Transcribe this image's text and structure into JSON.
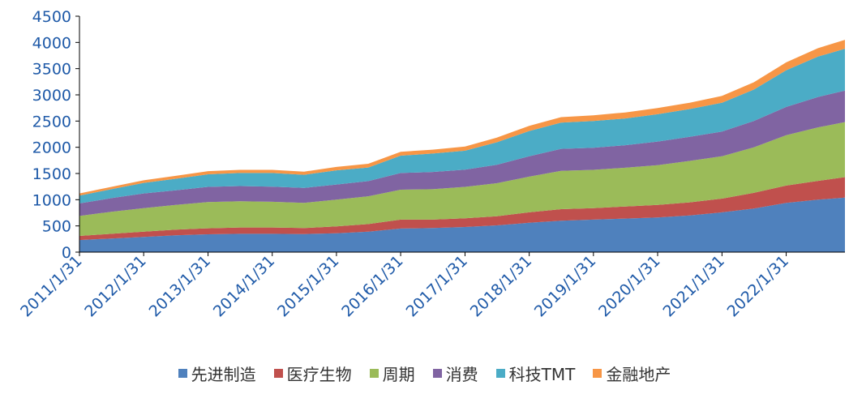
{
  "chart_data": {
    "type": "area",
    "stacked": true,
    "x": [
      "2011/1/31",
      "2011/7/31",
      "2012/1/31",
      "2012/7/31",
      "2013/1/31",
      "2013/7/31",
      "2014/1/31",
      "2014/7/31",
      "2015/1/31",
      "2015/7/31",
      "2016/1/31",
      "2016/7/31",
      "2017/1/31",
      "2017/7/31",
      "2018/1/31",
      "2018/7/31",
      "2019/1/31",
      "2019/7/31",
      "2020/1/31",
      "2020/7/31",
      "2021/1/31",
      "2021/7/31",
      "2022/1/31",
      "2022/7/31",
      "2022/12/31"
    ],
    "xticks": [
      "2011/1/31",
      "2012/1/31",
      "2013/1/31",
      "2014/1/31",
      "2015/1/31",
      "2016/1/31",
      "2017/1/31",
      "2018/1/31",
      "2019/1/31",
      "2020/1/31",
      "2021/1/31",
      "2022/1/31"
    ],
    "ylim": [
      0,
      4500
    ],
    "yticks": [
      0,
      500,
      1000,
      1500,
      2000,
      2500,
      3000,
      3500,
      4000,
      4500
    ],
    "series": [
      {
        "name": "先进制造",
        "color": "#4f81bd",
        "values": [
          230,
          260,
          290,
          320,
          340,
          350,
          350,
          345,
          360,
          390,
          450,
          460,
          480,
          510,
          560,
          600,
          620,
          640,
          660,
          700,
          760,
          830,
          940,
          1000,
          1040
        ]
      },
      {
        "name": "医疗生物",
        "color": "#c0504d",
        "values": [
          80,
          90,
          100,
          110,
          115,
          120,
          120,
          115,
          130,
          145,
          170,
          160,
          165,
          175,
          200,
          220,
          220,
          230,
          240,
          250,
          260,
          300,
          330,
          360,
          390
        ]
      },
      {
        "name": "周期",
        "color": "#9bbb59",
        "values": [
          380,
          420,
          450,
          470,
          500,
          500,
          490,
          480,
          510,
          530,
          570,
          580,
          600,
          630,
          680,
          730,
          730,
          740,
          760,
          790,
          810,
          870,
          960,
          1020,
          1050
        ]
      },
      {
        "name": "消费",
        "color": "#8064a2",
        "values": [
          240,
          260,
          280,
          280,
          290,
          290,
          290,
          285,
          290,
          290,
          320,
          330,
          330,
          350,
          390,
          420,
          420,
          430,
          450,
          460,
          470,
          500,
          540,
          580,
          600
        ]
      },
      {
        "name": "科技TMT",
        "color": "#4bacc6",
        "values": [
          150,
          170,
          200,
          220,
          240,
          250,
          260,
          250,
          270,
          260,
          330,
          350,
          360,
          430,
          480,
          500,
          510,
          510,
          520,
          530,
          550,
          600,
          700,
          770,
          800
        ]
      },
      {
        "name": "金融地产",
        "color": "#f79646",
        "values": [
          40,
          45,
          50,
          55,
          60,
          60,
          60,
          60,
          65,
          70,
          75,
          75,
          80,
          90,
          100,
          105,
          110,
          115,
          120,
          120,
          130,
          140,
          150,
          160,
          170
        ]
      }
    ]
  }
}
